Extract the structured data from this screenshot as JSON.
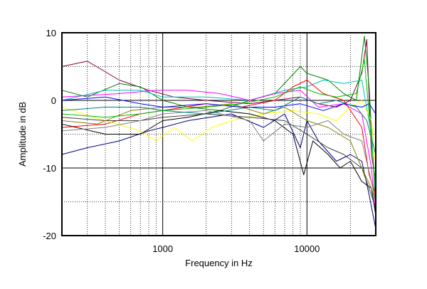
{
  "chart_data": {
    "type": "line",
    "title": "",
    "xlabel": "Frequency in Hz",
    "ylabel": "Amplitude in dB",
    "x_scale": "log",
    "xlim": [
      200,
      30000
    ],
    "ylim": [
      -20,
      10
    ],
    "x_tick_labels": [
      {
        "value": 1000,
        "label": "1000"
      },
      {
        "value": 10000,
        "label": "10000"
      }
    ],
    "y_tick_labels": [
      {
        "value": 10,
        "label": "10"
      },
      {
        "value": 0,
        "label": "0"
      },
      {
        "value": -10,
        "label": "-10"
      },
      {
        "value": -20,
        "label": "-20"
      }
    ],
    "y_major_grid": [
      10,
      5,
      0,
      -5,
      -10,
      -15,
      -20
    ],
    "grid": true,
    "legend": "none",
    "series": [
      {
        "color": "#800040",
        "points": [
          [
            200,
            5
          ],
          [
            300,
            5.8
          ],
          [
            500,
            3
          ],
          [
            800,
            1.5
          ],
          [
            1200,
            0.5
          ],
          [
            2000,
            0
          ],
          [
            4000,
            -0.5
          ],
          [
            6000,
            0
          ],
          [
            9000,
            0.5
          ],
          [
            12000,
            -0.5
          ],
          [
            16000,
            -1
          ],
          [
            20000,
            0
          ],
          [
            24000,
            4
          ],
          [
            26000,
            9
          ],
          [
            28000,
            -8
          ],
          [
            30000,
            -12
          ]
        ]
      },
      {
        "color": "#008000",
        "points": [
          [
            200,
            1.5
          ],
          [
            300,
            0.5
          ],
          [
            500,
            2.5
          ],
          [
            700,
            2
          ],
          [
            1000,
            0
          ],
          [
            1500,
            -1
          ],
          [
            2500,
            -1.5
          ],
          [
            4000,
            0
          ],
          [
            6000,
            1
          ],
          [
            9000,
            5
          ],
          [
            10000,
            4
          ],
          [
            14000,
            3
          ],
          [
            18000,
            1
          ],
          [
            22000,
            0
          ],
          [
            25000,
            9.5
          ],
          [
            27000,
            2
          ],
          [
            30000,
            -16
          ]
        ]
      },
      {
        "color": "#00c0c0",
        "points": [
          [
            200,
            0
          ],
          [
            400,
            1.5
          ],
          [
            700,
            1.5
          ],
          [
            1000,
            0.5
          ],
          [
            2000,
            0.5
          ],
          [
            4000,
            0
          ],
          [
            7000,
            1.5
          ],
          [
            10000,
            2
          ],
          [
            13000,
            3
          ],
          [
            18000,
            2.5
          ],
          [
            24000,
            3
          ],
          [
            28000,
            -5
          ],
          [
            30000,
            -14
          ]
        ]
      },
      {
        "color": "#ff00ff",
        "points": [
          [
            200,
            0.5
          ],
          [
            500,
            1
          ],
          [
            900,
            1.5
          ],
          [
            1500,
            1.5
          ],
          [
            2500,
            1
          ],
          [
            4000,
            0
          ],
          [
            6000,
            1
          ],
          [
            9000,
            1.5
          ],
          [
            12000,
            -1
          ],
          [
            18000,
            -0.5
          ],
          [
            24000,
            -2
          ],
          [
            28000,
            -10
          ],
          [
            30000,
            -17
          ]
        ]
      },
      {
        "color": "#ff0000",
        "points": [
          [
            200,
            -4
          ],
          [
            400,
            -3.5
          ],
          [
            700,
            -2
          ],
          [
            1000,
            -1.5
          ],
          [
            2000,
            -0.5
          ],
          [
            3500,
            -1
          ],
          [
            6000,
            0
          ],
          [
            8000,
            2
          ],
          [
            10000,
            3
          ],
          [
            13000,
            1
          ],
          [
            18000,
            0
          ],
          [
            24000,
            -4
          ],
          [
            27000,
            -11
          ],
          [
            30000,
            -14
          ]
        ]
      },
      {
        "color": "#ffff00",
        "points": [
          [
            200,
            -1
          ],
          [
            400,
            -3
          ],
          [
            700,
            -4.5
          ],
          [
            900,
            -6
          ],
          [
            1200,
            -4
          ],
          [
            1600,
            -6
          ],
          [
            2200,
            -4
          ],
          [
            3000,
            -3
          ],
          [
            5000,
            -2
          ],
          [
            8000,
            -1.5
          ],
          [
            12000,
            -2
          ],
          [
            16000,
            -3
          ],
          [
            20000,
            -1
          ],
          [
            24000,
            0
          ],
          [
            28000,
            -3
          ],
          [
            30000,
            -10
          ]
        ]
      },
      {
        "color": "#000080",
        "points": [
          [
            200,
            -8
          ],
          [
            300,
            -7
          ],
          [
            500,
            -6
          ],
          [
            800,
            -4.5
          ],
          [
            1000,
            -4
          ],
          [
            1500,
            -3
          ],
          [
            3000,
            -2
          ],
          [
            5000,
            -4
          ],
          [
            7000,
            -2
          ],
          [
            9000,
            -7
          ],
          [
            10000,
            -3
          ],
          [
            12000,
            -6
          ],
          [
            16000,
            -9
          ],
          [
            20000,
            -8
          ],
          [
            24000,
            -9
          ],
          [
            27000,
            -14
          ],
          [
            30000,
            -19
          ]
        ]
      },
      {
        "color": "#000000",
        "points": [
          [
            200,
            -3.5
          ],
          [
            400,
            -5
          ],
          [
            700,
            -5
          ],
          [
            1000,
            -3
          ],
          [
            1500,
            -2.5
          ],
          [
            2500,
            -1.5
          ],
          [
            4000,
            -2
          ],
          [
            6000,
            -3
          ],
          [
            8000,
            -5
          ],
          [
            9500,
            -11
          ],
          [
            11000,
            -6
          ],
          [
            14000,
            -8
          ],
          [
            17000,
            -10
          ],
          [
            20000,
            -9
          ],
          [
            24000,
            -12
          ],
          [
            28000,
            -13
          ],
          [
            30000,
            -17
          ]
        ]
      },
      {
        "color": "#404040",
        "points": [
          [
            200,
            -2.5
          ],
          [
            400,
            -3
          ],
          [
            700,
            -3
          ],
          [
            1000,
            -2.5
          ],
          [
            2000,
            -2
          ],
          [
            4000,
            -2.5
          ],
          [
            7000,
            -3
          ],
          [
            10000,
            -5
          ],
          [
            14000,
            -7
          ],
          [
            18000,
            -8
          ],
          [
            24000,
            -10
          ],
          [
            28000,
            -14
          ],
          [
            30000,
            -16
          ]
        ]
      },
      {
        "color": "#808000",
        "points": [
          [
            200,
            -3
          ],
          [
            350,
            -3.5
          ],
          [
            600,
            -1.5
          ],
          [
            1000,
            -1
          ],
          [
            1800,
            -1
          ],
          [
            3000,
            -0.5
          ],
          [
            5000,
            -2
          ],
          [
            7000,
            -1
          ],
          [
            10000,
            -3
          ],
          [
            14000,
            -4
          ],
          [
            20000,
            -6
          ],
          [
            24000,
            -10
          ],
          [
            28000,
            -13
          ],
          [
            30000,
            -15
          ]
        ]
      },
      {
        "color": "#808080",
        "points": [
          [
            200,
            -4.5
          ],
          [
            400,
            -4
          ],
          [
            700,
            -3
          ],
          [
            1000,
            -2
          ],
          [
            2000,
            -1.5
          ],
          [
            4000,
            -3
          ],
          [
            5000,
            -6
          ],
          [
            7000,
            -3.5
          ],
          [
            10000,
            -4
          ],
          [
            14000,
            -3
          ],
          [
            18000,
            -5
          ],
          [
            24000,
            -6
          ],
          [
            28000,
            -12
          ],
          [
            30000,
            -15
          ]
        ]
      },
      {
        "color": "#0000ff",
        "points": [
          [
            200,
            0
          ],
          [
            400,
            0.5
          ],
          [
            700,
            -0.5
          ],
          [
            1000,
            -1
          ],
          [
            2000,
            -0.5
          ],
          [
            3500,
            -1
          ],
          [
            6000,
            -1
          ],
          [
            9000,
            -0.5
          ],
          [
            13000,
            -1.5
          ],
          [
            18000,
            -0.5
          ],
          [
            24000,
            -1
          ],
          [
            27000,
            -0.5
          ],
          [
            30000,
            -2
          ]
        ]
      },
      {
        "color": "#008080",
        "points": [
          [
            200,
            -1.5
          ],
          [
            400,
            -1
          ],
          [
            700,
            -1
          ],
          [
            1000,
            -1.5
          ],
          [
            2000,
            -2
          ],
          [
            4000,
            -1
          ],
          [
            6000,
            -1.5
          ],
          [
            9000,
            0.5
          ],
          [
            12000,
            -0.5
          ],
          [
            16000,
            0
          ],
          [
            22000,
            -1
          ],
          [
            26000,
            -3
          ],
          [
            30000,
            -8
          ]
        ]
      },
      {
        "color": "#00c000",
        "points": [
          [
            200,
            -2
          ],
          [
            400,
            -2.5
          ],
          [
            700,
            -2
          ],
          [
            1000,
            -1.5
          ],
          [
            2000,
            -1
          ],
          [
            3500,
            -0.5
          ],
          [
            6000,
            0.5
          ],
          [
            9000,
            2
          ],
          [
            12000,
            1
          ],
          [
            16000,
            0.5
          ],
          [
            22000,
            1
          ],
          [
            25000,
            6
          ],
          [
            28000,
            -6
          ],
          [
            30000,
            -13
          ]
        ]
      }
    ]
  }
}
